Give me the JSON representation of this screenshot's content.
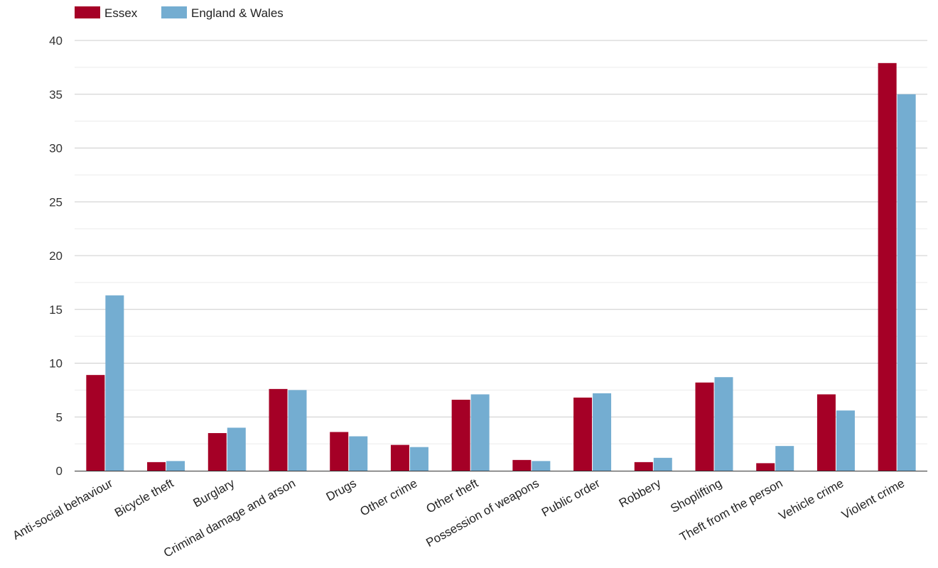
{
  "chart_data": {
    "type": "bar",
    "title": "",
    "xlabel": "",
    "ylabel": "",
    "ylim": [
      0,
      40
    ],
    "yticks": [
      0,
      5,
      10,
      15,
      20,
      25,
      30,
      35,
      40
    ],
    "grid": true,
    "legend_position": "top-left",
    "categories": [
      "Anti-social behaviour",
      "Bicycle theft",
      "Burglary",
      "Criminal damage and arson",
      "Drugs",
      "Other crime",
      "Other theft",
      "Possession of weapons",
      "Public order",
      "Robbery",
      "Shoplifting",
      "Theft from the person",
      "Vehicle crime",
      "Violent crime"
    ],
    "series": [
      {
        "name": "Essex",
        "color": "#a50026",
        "values": [
          8.9,
          0.8,
          3.5,
          7.6,
          3.6,
          2.4,
          6.6,
          1.0,
          6.8,
          0.8,
          8.2,
          0.7,
          7.1,
          37.9
        ]
      },
      {
        "name": "England & Wales",
        "color": "#74add1",
        "values": [
          16.3,
          0.9,
          4.0,
          7.5,
          3.2,
          2.2,
          7.1,
          0.9,
          7.2,
          1.2,
          8.7,
          2.3,
          5.6,
          35.0
        ]
      }
    ]
  }
}
